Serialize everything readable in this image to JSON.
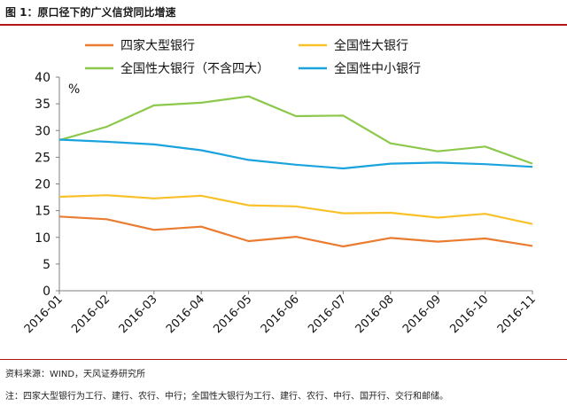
{
  "figure": {
    "title": "图 1：原口径下的广义信贷同比增速",
    "source": "资料来源：WIND，天风证券研究所",
    "note": "注：四家大型银行为工行、建行、农行、中行；全国性大银行为工行、建行、农行、中行、国开行、交行和邮储。"
  },
  "chart_data": {
    "type": "line",
    "title": "",
    "xlabel": "",
    "ylabel": "%",
    "ylim": [
      0,
      40
    ],
    "yticks": [
      0,
      5,
      10,
      15,
      20,
      25,
      30,
      35,
      40
    ],
    "grid": false,
    "legend_position": "top",
    "categories": [
      "2016-01",
      "2016-02",
      "2016-03",
      "2016-04",
      "2016-05",
      "2016-06",
      "2016-07",
      "2016-08",
      "2016-09",
      "2016-10",
      "2016-11"
    ],
    "series": [
      {
        "name": "四家大型银行",
        "color": "#e97c30",
        "values": [
          13.9,
          13.4,
          11.4,
          12.0,
          9.3,
          10.1,
          8.3,
          9.9,
          9.2,
          9.8,
          8.4
        ]
      },
      {
        "name": "全国性大银行",
        "color": "#f8c12a",
        "values": [
          17.6,
          17.9,
          17.3,
          17.8,
          16.0,
          15.8,
          14.5,
          14.6,
          13.7,
          14.4,
          12.5
        ]
      },
      {
        "name": "全国性大银行（不含四大）",
        "color": "#8cc84b",
        "values": [
          28.2,
          30.7,
          34.7,
          35.2,
          36.4,
          32.7,
          32.8,
          27.6,
          26.1,
          27.0,
          23.8
        ]
      },
      {
        "name": "全国性中小银行",
        "color": "#1aa3dd",
        "values": [
          28.3,
          27.9,
          27.4,
          26.3,
          24.5,
          23.6,
          22.9,
          23.8,
          24.0,
          23.7,
          23.2
        ]
      }
    ]
  }
}
